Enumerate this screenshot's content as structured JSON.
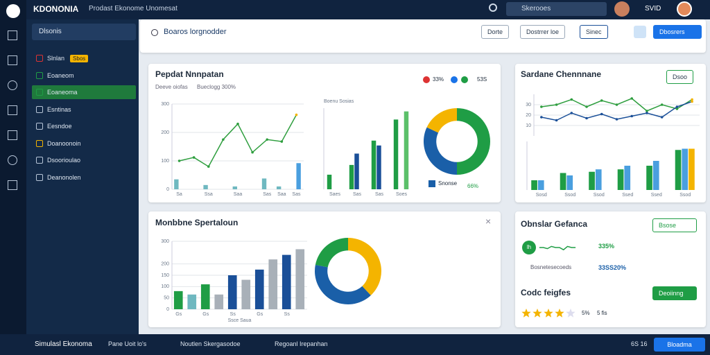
{
  "header": {
    "brand": "KDONONIA",
    "nav": "Prodast Ekonome Unomesat",
    "search": "Skerooes",
    "user": "SVID"
  },
  "sidebar": {
    "title": "Dlsonis",
    "items": [
      "Slnlan",
      "Eoaneom",
      "Eoaneoma",
      "Esntinas",
      "Eesndoe",
      "Doanoonoin",
      "Dsoorioulao",
      "Deanonolen"
    ],
    "badge": "Sbos"
  },
  "toolbar": {
    "title": "Boaros lorgnodder",
    "buttons": [
      "Dorte",
      "Dostrrer loe",
      "Sinec",
      "Dbosrers"
    ]
  },
  "panel_a": {
    "title": "Pepdat Nnnpatan",
    "subtitle": "Deeve oiofas",
    "note": "Bueclogg 300%",
    "legend": [
      "33%",
      "53S"
    ],
    "line_chart": {
      "type": "line",
      "ylim": [
        0,
        300
      ],
      "yticks": [
        0,
        100,
        200,
        300
      ],
      "categories": [
        "Sa",
        null,
        "Ssa",
        null,
        "Saa",
        null,
        "Sas",
        "Saa",
        "Sas"
      ],
      "series": [
        {
          "type": "bar",
          "color": "#6fb8c0",
          "values": [
            35,
            null,
            15,
            null,
            10,
            null,
            38,
            10,
            null
          ]
        },
        {
          "type": "bar",
          "color": "#4a9fdf",
          "values": [
            null,
            null,
            null,
            null,
            null,
            null,
            null,
            null,
            92
          ]
        },
        {
          "type": "line",
          "color": "#2e9e3e",
          "values": [
            100,
            112,
            80,
            175,
            230,
            130,
            175,
            168,
            262
          ]
        }
      ]
    },
    "bar_chart": {
      "type": "bar",
      "title": "Boenu Sosias",
      "ylim": [
        0,
        250
      ],
      "categories": [
        "Saes",
        "Sas",
        "Sas",
        "Soes"
      ],
      "series": [
        {
          "color": "#1f9d45",
          "values": [
            45,
            75,
            150,
            215
          ]
        },
        {
          "color": "#1a4f98",
          "values": [
            null,
            110,
            135,
            null
          ]
        },
        {
          "color": "#5cc06a",
          "values": [
            null,
            null,
            null,
            240
          ]
        }
      ]
    },
    "donut": {
      "type": "donut",
      "values": [
        50,
        32,
        18
      ],
      "colors": [
        "#1f9d45",
        "#1a5fa8",
        "#f4b400"
      ],
      "legend": "Snonse",
      "value_label": "66%"
    }
  },
  "panel_b": {
    "title": "Sardane Chennnane",
    "button": "Dsoo",
    "line_chart": {
      "type": "line",
      "ylim": [
        0,
        40
      ],
      "yticks": [
        10,
        20,
        30
      ],
      "categories": [
        null,
        null,
        null,
        null,
        null,
        null,
        null,
        null,
        null,
        null,
        null
      ],
      "series": [
        {
          "color": "#2e9e3e",
          "values": [
            28,
            30,
            35,
            28,
            34,
            30,
            36,
            24,
            30,
            26,
            35
          ]
        },
        {
          "color": "#1a4f98",
          "values": [
            18,
            15,
            22,
            17,
            21,
            16,
            19,
            22,
            18,
            28,
            33
          ]
        }
      ]
    },
    "bar_chart": {
      "type": "bar",
      "ylim": [
        0,
        40
      ],
      "categories": [
        "Sosd",
        "Ssod",
        "Ssod",
        "Ssed",
        "Ssed",
        "Ssod"
      ],
      "series": [
        {
          "color": "#1f9d45",
          "values": [
            8,
            14,
            15,
            17,
            20,
            33
          ]
        },
        {
          "color": "#4a9fdf",
          "values": [
            8,
            12,
            17,
            20,
            24,
            34
          ]
        },
        {
          "color": "#f4b400",
          "values": [
            null,
            null,
            null,
            null,
            null,
            34
          ]
        }
      ]
    }
  },
  "panel_c": {
    "title": "Monbbne Spertaloun",
    "bar_chart": {
      "type": "bar",
      "xlabel": "Ssce Saua",
      "ylim": [
        0,
        300
      ],
      "yticks": [
        0,
        50,
        100,
        150,
        200,
        300
      ],
      "categories": [
        "Gs",
        null,
        "Gs",
        null,
        "Ss",
        null,
        "Gs",
        null,
        "Ss",
        null
      ],
      "series": [
        {
          "values": [
            80,
            65,
            110,
            65,
            150,
            130,
            175,
            220,
            240,
            265
          ],
          "colors": [
            "#1f9d45",
            "#6fb8c0",
            "#1f9d45",
            "#a8b0b8",
            "#1a4f98",
            "#a8b0b8",
            "#1a4f98",
            "#a8b0b8",
            "#1a4f98",
            "#a8b0b8"
          ]
        }
      ]
    },
    "donut": {
      "type": "donut",
      "values": [
        38,
        40,
        22
      ],
      "colors": [
        "#f4b400",
        "#1a5fa8",
        "#1f9d45"
      ]
    }
  },
  "panel_d": {
    "title": "Obnslar Gefanca",
    "button": "Bsose",
    "badge": "lh",
    "stat1": "335%",
    "label": "Bosnetesecoeds",
    "stat2": "33SS20%",
    "spark": {
      "type": "line",
      "ylim": [
        0,
        10
      ],
      "categories": [
        null,
        null,
        null,
        null,
        null,
        null,
        null,
        null,
        null,
        null
      ],
      "series": [
        {
          "color": "#1f9d45",
          "values": [
            5,
            5,
            4,
            6,
            5,
            5,
            3,
            6,
            5,
            5
          ]
        }
      ]
    },
    "rating_title": "Codc feigfes",
    "rating": 4,
    "rating_max": 5,
    "rating_label": "5%",
    "rating_note": "5 fis",
    "rating_button": "Deoiinng"
  },
  "footer": {
    "brand": "Simulasl Ekonoma",
    "tabs": [
      "Pane Uoit lo's",
      "Noutlen Skergasodoe",
      "Regoanl Irepanhan"
    ],
    "time": "6S 16",
    "button": "Bloadma"
  }
}
